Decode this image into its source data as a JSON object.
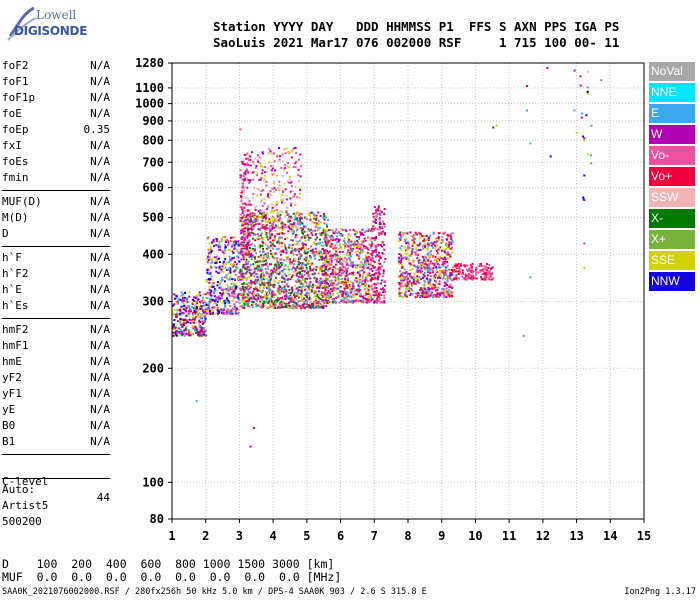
{
  "logo": {
    "line1": "Lowell",
    "line2": "DIGISONDE"
  },
  "header": {
    "line1": "Station YYYY DAY   DDD HHMMSS P1  FFS S AXN PPS IGA PS",
    "line2": "SaoLuis 2021 Mar17 076 002000 RSF     1 715 100 00- 11"
  },
  "params": {
    "group1": [
      {
        "name": "foF2",
        "value": "N/A"
      },
      {
        "name": "foF1",
        "value": "N/A"
      },
      {
        "name": "foF1p",
        "value": "N/A"
      },
      {
        "name": "foE",
        "value": "N/A"
      },
      {
        "name": "foEp",
        "value": "0.35"
      },
      {
        "name": "fxI",
        "value": "N/A"
      },
      {
        "name": "foEs",
        "value": "N/A"
      },
      {
        "name": "fmin",
        "value": "N/A"
      }
    ],
    "group2": [
      {
        "name": "MUF(D)",
        "value": "N/A"
      },
      {
        "name": "M(D)",
        "value": "N/A"
      },
      {
        "name": "D",
        "value": "N/A"
      }
    ],
    "group3": [
      {
        "name": "h`F",
        "value": "N/A"
      },
      {
        "name": "h`F2",
        "value": "N/A"
      },
      {
        "name": "h`E",
        "value": "N/A"
      },
      {
        "name": "h`Es",
        "value": "N/A"
      }
    ],
    "group4": [
      {
        "name": "hmF2",
        "value": "N/A"
      },
      {
        "name": "hmF1",
        "value": "N/A"
      },
      {
        "name": "hmE",
        "value": "N/A"
      },
      {
        "name": "yF2",
        "value": "N/A"
      },
      {
        "name": "yF1",
        "value": "N/A"
      },
      {
        "name": "yE",
        "value": "N/A"
      },
      {
        "name": "B0",
        "value": "N/A"
      },
      {
        "name": "B1",
        "value": "N/A"
      }
    ],
    "clevel": {
      "name": "C-level",
      "value": "44"
    },
    "auto": [
      "Auto:",
      "Artist5",
      "500200"
    ]
  },
  "legend": [
    {
      "label": "NoVal",
      "color": "#a8a8a8"
    },
    {
      "label": "NNE",
      "color": "#00e4ff"
    },
    {
      "label": "E",
      "color": "#3ca8f0"
    },
    {
      "label": "W",
      "color": "#b400b4"
    },
    {
      "label": "Vo-",
      "color": "#f050a0"
    },
    {
      "label": "Vo+",
      "color": "#f0003c"
    },
    {
      "label": "SSW",
      "color": "#f0b4b4"
    },
    {
      "label": "X-",
      "color": "#007800"
    },
    {
      "label": "X+",
      "color": "#78b43c"
    },
    {
      "label": "SSE",
      "color": "#d2d200"
    },
    {
      "label": "NNW",
      "color": "#1400dc"
    }
  ],
  "chart_data": {
    "type": "scatter",
    "xlim": [
      1,
      15
    ],
    "ylim": [
      80,
      1280
    ],
    "y_scale": "log",
    "grid": true,
    "x_ticks": [
      "1",
      "2",
      "3",
      "4",
      "5",
      "6",
      "7",
      "8",
      "9",
      "10",
      "11",
      "12",
      "13",
      "14",
      "15"
    ],
    "y_ticks": [
      {
        "v": 80,
        "label": "80"
      },
      {
        "v": 100,
        "label": "100"
      },
      {
        "v": 200,
        "label": "200"
      },
      {
        "v": 300,
        "label": "300"
      },
      {
        "v": 400,
        "label": "400"
      },
      {
        "v": 500,
        "label": "500"
      },
      {
        "v": 600,
        "label": "600"
      },
      {
        "v": 700,
        "label": "700"
      },
      {
        "v": 800,
        "label": "800"
      },
      {
        "v": 900,
        "label": "900"
      },
      {
        "v": 1000,
        "label": "1000"
      },
      {
        "v": 1100,
        "label": "1100"
      },
      {
        "v": 1280,
        "label": "1280"
      }
    ],
    "clusters": [
      {
        "x": [
          1.0,
          2.0
        ],
        "y": [
          245,
          320
        ],
        "n": 320,
        "colors": [
          "#b400b4",
          "#1400dc",
          "#f0003c",
          "#3ca8f0",
          "#d2d200"
        ]
      },
      {
        "x": [
          2.0,
          3.0
        ],
        "y": [
          280,
          450
        ],
        "n": 420,
        "colors": [
          "#b400b4",
          "#d2d200",
          "#3ca8f0",
          "#f050a0",
          "#1400dc"
        ]
      },
      {
        "x": [
          3.0,
          5.6
        ],
        "y": [
          290,
          520
        ],
        "n": 1500,
        "colors": [
          "#d2d200",
          "#b400b4",
          "#f050a0",
          "#f0003c",
          "#3ca8f0",
          "#007800"
        ]
      },
      {
        "x": [
          3.0,
          3.3
        ],
        "y": [
          400,
          750
        ],
        "n": 180,
        "colors": [
          "#f0003c",
          "#b400b4",
          "#f050a0",
          "#f0b4b4"
        ]
      },
      {
        "x": [
          3.3,
          4.8
        ],
        "y": [
          470,
          770
        ],
        "n": 260,
        "colors": [
          "#d2d200",
          "#f0b4b4",
          "#b400b4",
          "#f050a0"
        ]
      },
      {
        "x": [
          5.5,
          6.9
        ],
        "y": [
          300,
          470
        ],
        "n": 700,
        "colors": [
          "#f0003c",
          "#d2d200",
          "#b400b4",
          "#f050a0",
          "#3ca8f0"
        ]
      },
      {
        "x": [
          6.9,
          7.3
        ],
        "y": [
          300,
          540
        ],
        "n": 200,
        "colors": [
          "#f0003c",
          "#b400b4",
          "#f050a0"
        ]
      },
      {
        "x": [
          7.7,
          9.3
        ],
        "y": [
          310,
          460
        ],
        "n": 650,
        "colors": [
          "#f0003c",
          "#b400b4",
          "#f050a0",
          "#d2d200",
          "#3ca8f0"
        ]
      },
      {
        "x": [
          9.3,
          10.5
        ],
        "y": [
          345,
          380
        ],
        "n": 160,
        "colors": [
          "#f0003c",
          "#f050a0"
        ]
      },
      {
        "x": [
          12.9,
          13.5
        ],
        "y": [
          560,
          1240
        ],
        "n": 16,
        "colors": [
          "#b400b4",
          "#f0003c",
          "#3ca8f0",
          "#1400dc",
          "#d2d200"
        ]
      }
    ],
    "points": [
      {
        "x": 1.7,
        "y": 165,
        "color": "#3ca8f0"
      },
      {
        "x": 3.4,
        "y": 140,
        "color": "#b400b4"
      },
      {
        "x": 3.3,
        "y": 125,
        "color": "#b400b4"
      },
      {
        "x": 3.0,
        "y": 860,
        "color": "#f050a0"
      },
      {
        "x": 10.5,
        "y": 870,
        "color": "#007800"
      },
      {
        "x": 10.6,
        "y": 880,
        "color": "#d2d200"
      },
      {
        "x": 11.4,
        "y": 245,
        "color": "#3ca8f0"
      },
      {
        "x": 11.5,
        "y": 965,
        "color": "#3ca8f0"
      },
      {
        "x": 11.5,
        "y": 1120,
        "color": "#f0003c"
      },
      {
        "x": 11.6,
        "y": 350,
        "color": "#3ca8f0"
      },
      {
        "x": 11.6,
        "y": 790,
        "color": "#3ca8f0"
      },
      {
        "x": 12.1,
        "y": 1250,
        "color": "#f0003c"
      },
      {
        "x": 12.2,
        "y": 730,
        "color": "#1400dc"
      },
      {
        "x": 13.2,
        "y": 370,
        "color": "#d2d200"
      },
      {
        "x": 13.2,
        "y": 430,
        "color": "#f050a0"
      },
      {
        "x": 13.2,
        "y": 560,
        "color": "#b400b4"
      },
      {
        "x": 13.2,
        "y": 650,
        "color": "#1400dc"
      },
      {
        "x": 13.2,
        "y": 815,
        "color": "#b400b4"
      },
      {
        "x": 13.3,
        "y": 1080,
        "color": "#000000"
      },
      {
        "x": 13.3,
        "y": 1110,
        "color": "#3ca8f0"
      },
      {
        "x": 13.3,
        "y": 1220,
        "color": "#f0b4b4"
      },
      {
        "x": 13.4,
        "y": 700,
        "color": "#78b43c"
      },
      {
        "x": 13.7,
        "y": 1160,
        "color": "#3ca8f0"
      }
    ]
  },
  "footer": {
    "dline": "D    100  200  400  600  800 1000 1500 3000 [km]",
    "mufline": "MUF  0.0  0.0  0.0  0.0  0.0  0.0  0.0  0.0 [MHz]",
    "bottom": "SAA0K_2021076002000.RSF / 280fx256h 50 kHz 5.0 km / DPS-4 SAA0K 903 / 2.6 S 315.8 E",
    "version": "Ion2Png 1.3.17"
  }
}
